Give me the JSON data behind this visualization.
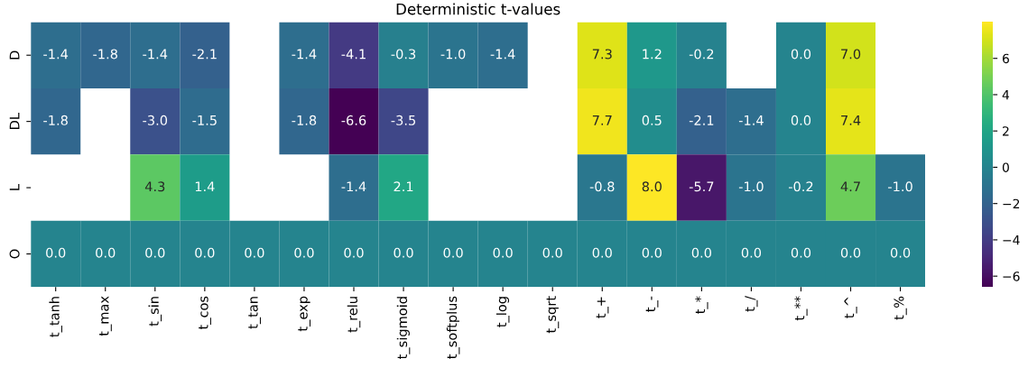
{
  "chart_data": {
    "type": "heatmap",
    "title": "Deterministic t-values",
    "categories": [
      "t_tanh",
      "t_max",
      "t_sin",
      "t_cos",
      "t_tan",
      "t_exp",
      "t_relu",
      "t_sigmoid",
      "t_softplus",
      "t_log",
      "t_sqrt",
      "t_+",
      "t_-",
      "t_*",
      "t_/",
      "t_**",
      "t_^",
      "t_%"
    ],
    "y_categories": [
      "D",
      "DL",
      "L",
      "O"
    ],
    "cells": [
      [
        -1.4,
        -1.8,
        -1.4,
        -2.1,
        null,
        -1.4,
        -4.1,
        -0.3,
        -1.0,
        -1.4,
        null,
        7.3,
        1.2,
        -0.2,
        null,
        0.0,
        7.0,
        null
      ],
      [
        -1.8,
        null,
        -3.0,
        -1.5,
        null,
        -1.8,
        -6.6,
        -3.5,
        null,
        null,
        null,
        7.7,
        0.5,
        -2.1,
        -1.4,
        0.0,
        7.4,
        null
      ],
      [
        null,
        null,
        4.3,
        1.4,
        null,
        null,
        -1.4,
        2.1,
        null,
        null,
        null,
        -0.8,
        8.0,
        -5.7,
        -1.0,
        -0.2,
        4.7,
        -1.0
      ],
      [
        0.0,
        0.0,
        0.0,
        0.0,
        0.0,
        0.0,
        0.0,
        0.0,
        0.0,
        0.0,
        0.0,
        0.0,
        0.0,
        0.0,
        0.0,
        0.0,
        0.0,
        0.0
      ]
    ],
    "cell_labels": [
      [
        "-1.4",
        "-1.8",
        "-1.4",
        "-2.1",
        null,
        "-1.4",
        "-4.1",
        "-0.3",
        "-1.0",
        "-1.4",
        null,
        "7.3",
        "1.2",
        "-0.2",
        null,
        "0.0",
        "7.0",
        null
      ],
      [
        "-1.8",
        null,
        "-3.0",
        "-1.5",
        null,
        "-1.8",
        "-6.6",
        "-3.5",
        null,
        null,
        null,
        "7.7",
        "0.5",
        "-2.1",
        "-1.4",
        "0.0",
        "7.4",
        null
      ],
      [
        null,
        null,
        "4.3",
        "1.4",
        null,
        null,
        "-1.4",
        "2.1",
        null,
        null,
        null,
        "-0.8",
        "8.0",
        "-5.7",
        "-1.0",
        "-0.2",
        "4.7",
        "-1.0"
      ],
      [
        "0.0",
        "0.0",
        "0.0",
        "0.0",
        "0.0",
        "0.0",
        "0.0",
        "0.0",
        "0.0",
        "0.0",
        "0.0",
        "0.0",
        "0.0",
        "0.0",
        "0.0",
        "0.0",
        "0.0",
        "0.0"
      ]
    ],
    "clim": [
      -6.6,
      8.0
    ],
    "cticks": [
      -6,
      -4,
      -2,
      0,
      2,
      4,
      6
    ]
  }
}
